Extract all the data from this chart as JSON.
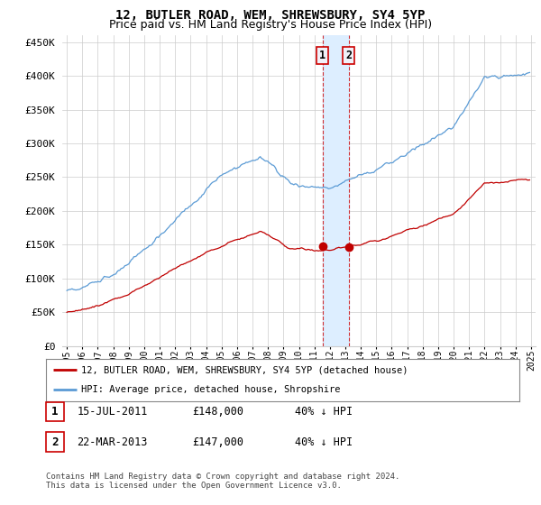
{
  "title": "12, BUTLER ROAD, WEM, SHREWSBURY, SY4 5YP",
  "subtitle": "Price paid vs. HM Land Registry's House Price Index (HPI)",
  "title_fontsize": 10,
  "subtitle_fontsize": 9,
  "ylim": [
    0,
    460000
  ],
  "yticks": [
    0,
    50000,
    100000,
    150000,
    200000,
    250000,
    300000,
    350000,
    400000,
    450000
  ],
  "ytick_labels": [
    "£0",
    "£50K",
    "£100K",
    "£150K",
    "£200K",
    "£250K",
    "£300K",
    "£350K",
    "£400K",
    "£450K"
  ],
  "xlim_start": 1994.7,
  "xlim_end": 2025.3,
  "xtick_years": [
    1995,
    1996,
    1997,
    1998,
    1999,
    2000,
    2001,
    2002,
    2003,
    2004,
    2005,
    2006,
    2007,
    2008,
    2009,
    2010,
    2011,
    2012,
    2013,
    2014,
    2015,
    2016,
    2017,
    2018,
    2019,
    2020,
    2021,
    2022,
    2023,
    2024,
    2025
  ],
  "hpi_color": "#5b9bd5",
  "price_color": "#c00000",
  "marker_color": "#c00000",
  "sale1_x": 2011.54,
  "sale1_y": 148000,
  "sale2_x": 2013.23,
  "sale2_y": 147000,
  "shade_color": "#ddeeff",
  "vline_color": "#cc0000",
  "legend_label_red": "12, BUTLER ROAD, WEM, SHREWSBURY, SY4 5YP (detached house)",
  "legend_label_blue": "HPI: Average price, detached house, Shropshire",
  "table_rows": [
    {
      "num": "1",
      "date": "15-JUL-2011",
      "price": "£148,000",
      "pct": "40% ↓ HPI"
    },
    {
      "num": "2",
      "date": "22-MAR-2013",
      "price": "£147,000",
      "pct": "40% ↓ HPI"
    }
  ],
  "footer": "Contains HM Land Registry data © Crown copyright and database right 2024.\nThis data is licensed under the Open Government Licence v3.0.",
  "background_color": "#ffffff",
  "grid_color": "#cccccc"
}
